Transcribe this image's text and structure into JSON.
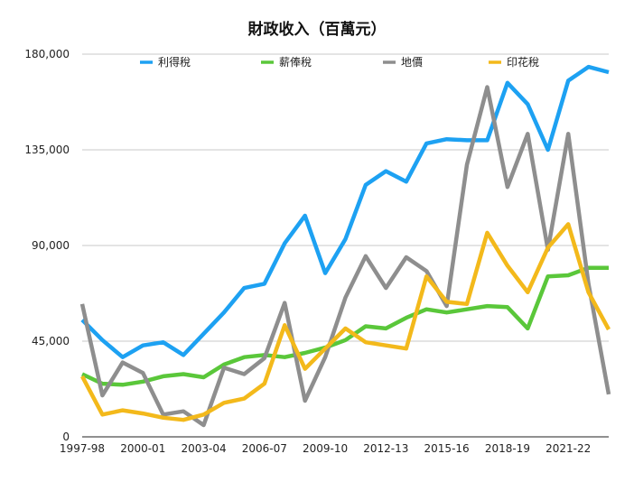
{
  "chart_data": {
    "type": "line",
    "title": "財政收入（百萬元）",
    "ylim": [
      0,
      180000
    ],
    "yticks": [
      "0",
      "45,000",
      "90,000",
      "135,000",
      "180,000"
    ],
    "ytick_values": [
      0,
      45000,
      90000,
      135000,
      180000
    ],
    "grid": true,
    "legend_position": "top",
    "x": [
      "1997-98",
      "1998-99",
      "1999-00",
      "2000-01",
      "2001-02",
      "2002-03",
      "2003-04",
      "2004-05",
      "2005-06",
      "2006-07",
      "2007-08",
      "2008-09",
      "2009-10",
      "2010-11",
      "2011-12",
      "2012-13",
      "2013-14",
      "2014-15",
      "2015-16",
      "2016-17",
      "2017-18",
      "2018-19",
      "2019-20",
      "2020-21",
      "2021-22",
      "2022-23",
      "2023-24"
    ],
    "xtick_labels": [
      "1997-98",
      "2000-01",
      "2003-04",
      "2006-07",
      "2009-10",
      "2012-13",
      "2015-16",
      "2018-19",
      "2021-22"
    ],
    "series": [
      {
        "name": "利得稅",
        "color": "#1da1f2",
        "values": [
          55000,
          45500,
          37500,
          43000,
          44500,
          38500,
          48500,
          58500,
          70000,
          72000,
          91000,
          104000,
          77000,
          93000,
          118500,
          125000,
          120000,
          138000,
          140000,
          139500,
          139500,
          166500,
          156500,
          135000,
          167500,
          174000,
          171500
        ]
      },
      {
        "name": "薪俸稅",
        "color": "#5ac73a",
        "values": [
          29500,
          25000,
          24500,
          26000,
          28500,
          29500,
          28000,
          34000,
          37500,
          38500,
          37500,
          39500,
          42000,
          45500,
          52000,
          51000,
          56000,
          60000,
          58500,
          60000,
          61500,
          61000,
          51000,
          75500,
          76000,
          79500,
          79500
        ]
      },
      {
        "name": "地價",
        "color": "#8e8e8e",
        "values": [
          62500,
          19500,
          35000,
          30000,
          10500,
          12000,
          5500,
          32500,
          29500,
          37000,
          63000,
          17000,
          37500,
          65500,
          85000,
          70000,
          84500,
          78000,
          61500,
          128000,
          164500,
          117500,
          142500,
          88000,
          142500,
          72000,
          20000
        ]
      },
      {
        "name": "印花稅",
        "color": "#f3b91b",
        "values": [
          28500,
          10500,
          12500,
          11000,
          9000,
          8000,
          10500,
          16000,
          18000,
          25000,
          52500,
          32000,
          41500,
          51000,
          44500,
          43000,
          41500,
          75500,
          63500,
          62500,
          96000,
          80500,
          68000,
          89000,
          100000,
          68000,
          50500
        ]
      }
    ]
  }
}
